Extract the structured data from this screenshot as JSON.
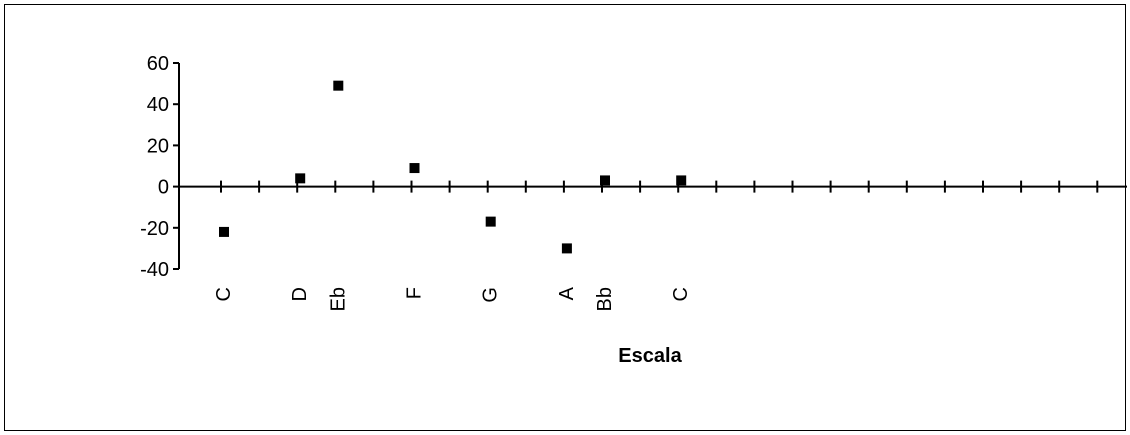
{
  "chart_data": {
    "type": "scatter",
    "title": "",
    "xlabel": "Escala",
    "ylabel": "",
    "ylim": [
      -40,
      60
    ],
    "yticks": [
      60,
      40,
      20,
      0,
      -20,
      -40
    ],
    "grid": false,
    "legend": "none",
    "categories": [
      "C",
      "D",
      "Eb",
      "F",
      "G",
      "A",
      "Bb",
      "C"
    ],
    "values": [
      -22,
      4,
      49,
      9,
      -17,
      -30,
      3,
      3
    ],
    "x_tick_count": 24,
    "marker_color": "#000000"
  }
}
